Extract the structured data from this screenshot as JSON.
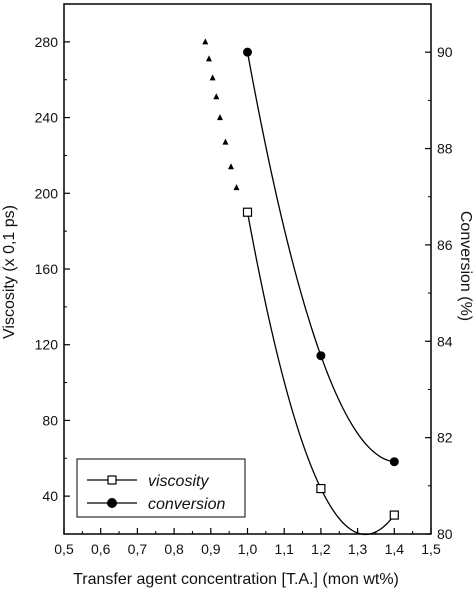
{
  "chart_data": {
    "type": "scatter",
    "xlabel": "Transfer agent concentration [T.A.] (mon wt%)",
    "ylabel_left": "Viscosity (x 0,1 ps)",
    "ylabel_right": "Conversion (%)",
    "xlim": [
      0.5,
      1.5
    ],
    "ylim_left": [
      20,
      300
    ],
    "ylim_right": [
      80,
      91
    ],
    "x_ticks": [
      "0,5",
      "0,6",
      "0,7",
      "0,8",
      "0,9",
      "1,0",
      "1,1",
      "1,2",
      "1,3",
      "1,4",
      "1,5"
    ],
    "y_left_ticks": [
      "40",
      "80",
      "120",
      "160",
      "200",
      "240",
      "280"
    ],
    "y_right_ticks": [
      "80",
      "82",
      "84",
      "86",
      "88",
      "90"
    ],
    "grid": false,
    "legend_position": "bottom-left",
    "series": [
      {
        "name": "viscosity",
        "axis": "left",
        "marker": "open-square",
        "x": [
          1.0,
          1.2,
          1.4
        ],
        "y": [
          190,
          44,
          30
        ],
        "fit_curve": true
      },
      {
        "name": "conversion",
        "axis": "right",
        "marker": "filled-circle",
        "x": [
          1.0,
          1.2,
          1.4
        ],
        "y": [
          90.0,
          83.7,
          81.5
        ],
        "fit_curve": true
      },
      {
        "axis": "left",
        "marker": "filled-triangle",
        "x": [
          0.885,
          0.895,
          0.905,
          0.915,
          0.925,
          0.94,
          0.955,
          0.97
        ],
        "y": [
          280,
          271,
          261,
          251,
          240,
          227,
          214,
          203
        ]
      }
    ]
  }
}
